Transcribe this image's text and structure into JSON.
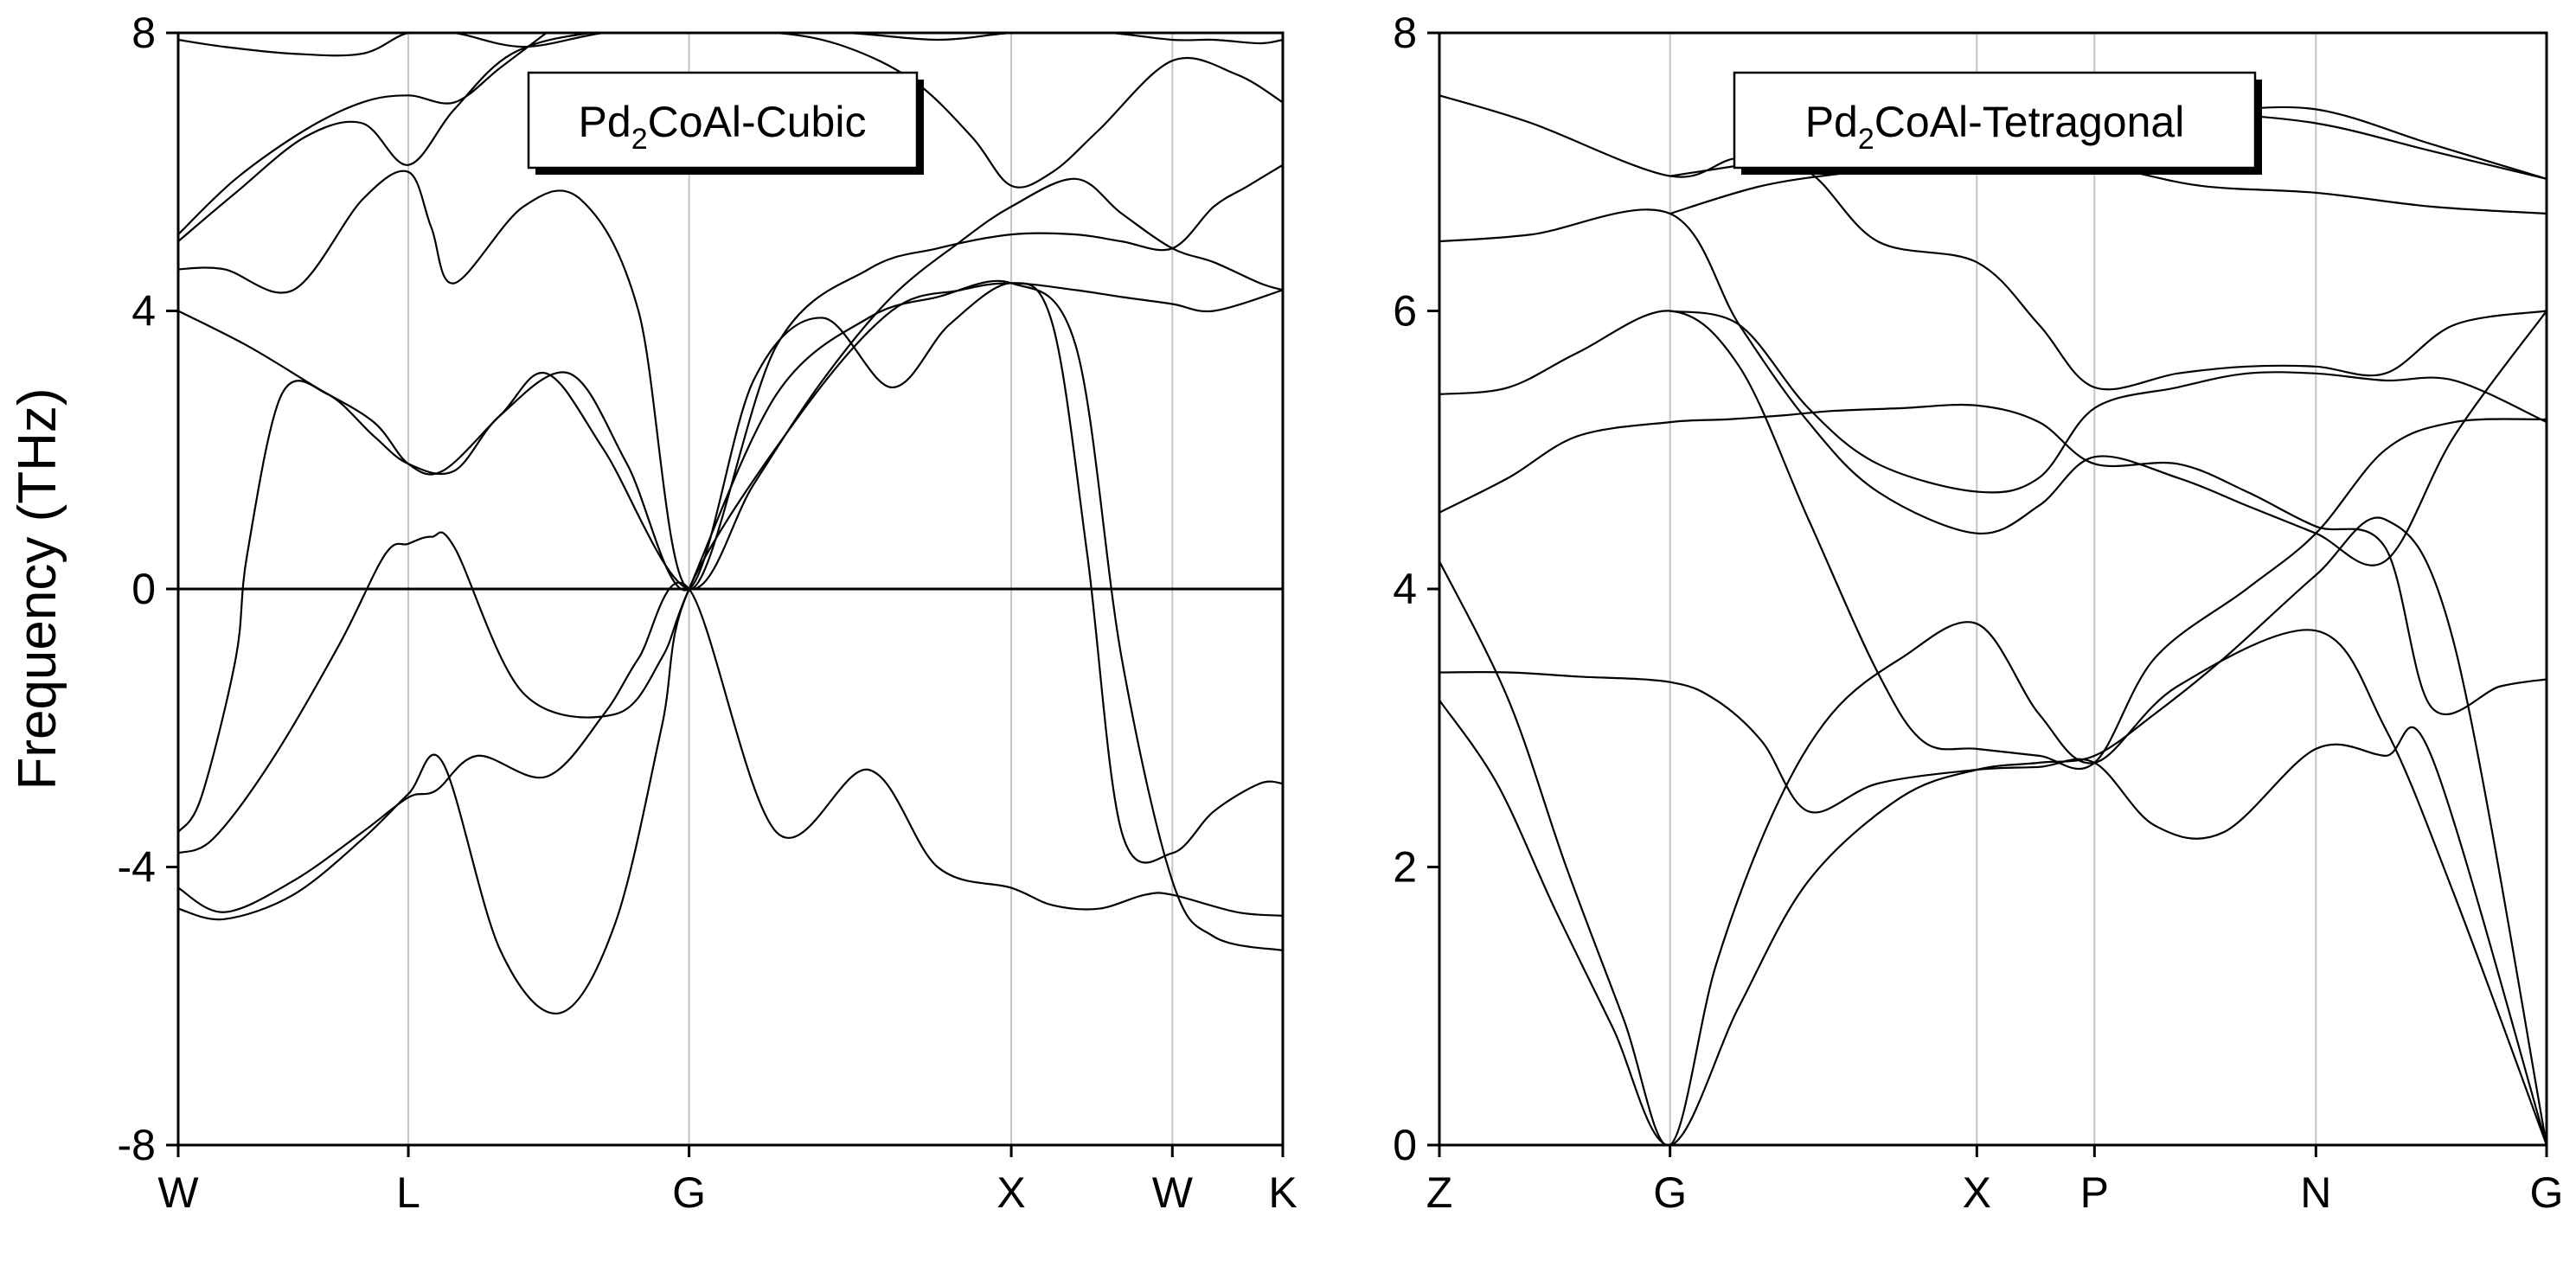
{
  "chart_data": [
    {
      "type": "line",
      "title": "Pd2CoAl-Cubic",
      "title_parts": {
        "base": "Pd",
        "sub": "2",
        "rest": "CoAl-Cubic"
      },
      "ylabel": "Frequency (THz)",
      "xlabel": "",
      "ylim": [
        -8,
        8
      ],
      "yticks": [
        -8,
        -4,
        0,
        4,
        8
      ],
      "ytick_labels": [
        "-8",
        "-4",
        "0",
        "4",
        "8"
      ],
      "xlim": [
        0,
        4.8
      ],
      "high_symmetry_points": [
        {
          "label": "W",
          "x": 0
        },
        {
          "label": "L",
          "x": 1.0
        },
        {
          "label": "G",
          "x": 2.22
        },
        {
          "label": "X",
          "x": 3.62
        },
        {
          "label": "W",
          "x": 4.32
        },
        {
          "label": "K",
          "x": 4.8
        }
      ],
      "zero_line": true,
      "series": [
        {
          "name": "b1",
          "x": [
            0,
            0.2,
            0.5,
            0.8,
            1.0,
            1.12,
            1.3,
            1.6,
            1.85,
            2.0,
            2.22,
            2.6,
            3.0,
            3.3,
            3.62,
            3.8,
            4.0,
            4.2,
            4.32,
            4.6,
            4.8
          ],
          "y": [
            -4.3,
            -4.65,
            -4.2,
            -3.5,
            -3.0,
            -2.9,
            -2.4,
            -2.7,
            -1.8,
            -1.0,
            0,
            -3.5,
            -2.6,
            -4.0,
            -4.3,
            -4.55,
            -4.6,
            -4.4,
            -4.4,
            -4.65,
            -4.7
          ]
        },
        {
          "name": "b2",
          "x": [
            0,
            0.2,
            0.5,
            0.8,
            1.0,
            1.15,
            1.4,
            1.66,
            1.9,
            2.1,
            2.22,
            2.7,
            3.1,
            3.4,
            3.62,
            3.9,
            4.1,
            4.32,
            4.5,
            4.8
          ],
          "y": [
            -4.6,
            -4.75,
            -4.4,
            -3.6,
            -2.95,
            -2.5,
            -5.2,
            -6.1,
            -4.8,
            -2.0,
            0,
            2.5,
            4.0,
            4.3,
            4.4,
            4.3,
            4.2,
            4.1,
            4.0,
            4.3
          ]
        },
        {
          "name": "b3",
          "x": [
            0,
            0.15,
            0.4,
            0.7,
            0.9,
            1.0,
            1.1,
            1.2,
            1.5,
            1.9,
            2.1,
            2.22,
            2.6,
            3.0,
            3.3,
            3.62,
            3.9,
            4.1,
            4.32,
            4.5,
            4.8
          ],
          "y": [
            -3.8,
            -3.6,
            -2.5,
            -0.8,
            0.5,
            0.65,
            0.75,
            0.6,
            -1.5,
            -1.8,
            -1.0,
            0,
            2.8,
            3.9,
            4.2,
            4.4,
            3.5,
            -1.0,
            -4.2,
            -5.0,
            -5.2
          ]
        },
        {
          "name": "b4",
          "x": [
            0,
            0.1,
            0.25,
            0.3,
            0.45,
            0.65,
            0.85,
            1.0,
            1.2,
            1.4,
            1.7,
            1.95,
            2.22,
            2.5,
            2.8,
            3.1,
            3.35,
            3.62,
            3.8,
            3.95,
            4.1,
            4.32,
            4.5,
            4.7,
            4.8
          ],
          "y": [
            -3.5,
            -3.0,
            -1.0,
            0.5,
            2.8,
            2.8,
            2.2,
            1.8,
            1.7,
            2.5,
            3.1,
            1.8,
            0,
            3.0,
            3.9,
            2.9,
            3.8,
            4.4,
            3.8,
            0.5,
            -3.5,
            -3.8,
            -3.2,
            -2.8,
            -2.8
          ]
        },
        {
          "name": "b5",
          "x": [
            0,
            0.3,
            0.6,
            0.85,
            1.0,
            1.15,
            1.4,
            1.6,
            1.85,
            2.22,
            2.5,
            2.8,
            3.1,
            3.4,
            3.62,
            3.9,
            4.1,
            4.32,
            4.5,
            4.7,
            4.8
          ],
          "y": [
            4.0,
            3.5,
            2.9,
            2.4,
            1.8,
            1.7,
            2.5,
            3.1,
            2.0,
            0,
            1.5,
            3.0,
            4.2,
            5.0,
            5.5,
            5.9,
            5.4,
            4.9,
            4.7,
            4.4,
            4.3
          ]
        },
        {
          "name": "b6",
          "x": [
            0,
            0.2,
            0.5,
            0.8,
            1.0,
            1.1,
            1.2,
            1.5,
            1.75,
            2.0,
            2.22,
            2.6,
            3.0,
            3.3,
            3.62,
            3.9,
            4.1,
            4.32,
            4.5,
            4.65,
            4.8
          ],
          "y": [
            4.6,
            4.6,
            4.3,
            5.6,
            6.0,
            5.2,
            4.4,
            5.5,
            5.6,
            4.0,
            0,
            3.5,
            4.6,
            4.9,
            5.1,
            5.1,
            5.0,
            4.9,
            5.5,
            5.8,
            6.1
          ]
        },
        {
          "name": "b7",
          "x": [
            0,
            0.25,
            0.55,
            0.8,
            1.0,
            1.2,
            1.45,
            1.8,
            2.2,
            2.6,
            2.9,
            3.2,
            3.45,
            3.62,
            3.8,
            4.0,
            4.32,
            4.6,
            4.8
          ],
          "y": [
            5.0,
            5.7,
            6.5,
            6.7,
            6.1,
            6.9,
            7.7,
            8.0,
            8.0,
            8.0,
            7.8,
            7.3,
            6.5,
            5.8,
            6.0,
            6.6,
            7.6,
            7.4,
            7.0
          ]
        },
        {
          "name": "b8",
          "x": [
            0,
            0.2,
            0.5,
            0.8,
            1.0,
            1.2,
            1.5,
            1.85,
            2.1,
            2.5,
            2.9,
            3.3,
            3.62,
            3.85,
            4.05,
            4.32,
            4.5,
            4.7,
            4.8
          ],
          "y": [
            7.9,
            7.8,
            7.7,
            7.7,
            8.0,
            8.0,
            7.8,
            8.0,
            8.0,
            8.0,
            8.0,
            7.9,
            8.0,
            8.0,
            8.0,
            7.9,
            7.9,
            7.85,
            7.9
          ]
        },
        {
          "name": "b9",
          "x": [
            0,
            0.25,
            0.55,
            0.8,
            1.0,
            1.2,
            1.4,
            1.6
          ],
          "y": [
            5.1,
            5.9,
            6.6,
            7.0,
            7.1,
            7.0,
            7.5,
            8.0
          ]
        }
      ]
    },
    {
      "type": "line",
      "title": "Pd2CoAl-Tetragonal",
      "title_parts": {
        "base": "Pd",
        "sub": "2",
        "rest": "CoAl-Tetragonal"
      },
      "ylabel": "",
      "xlabel": "",
      "ylim": [
        0,
        8
      ],
      "yticks": [
        0,
        2,
        4,
        6,
        8
      ],
      "ytick_labels": [
        "0",
        "2",
        "4",
        "6",
        "8"
      ],
      "xlim": [
        0,
        4.8
      ],
      "high_symmetry_points": [
        {
          "label": "Z",
          "x": 0
        },
        {
          "label": "G",
          "x": 1.0
        },
        {
          "label": "X",
          "x": 2.33
        },
        {
          "label": "P",
          "x": 2.84
        },
        {
          "label": "N",
          "x": 3.8
        },
        {
          "label": "G",
          "x": 4.8
        }
      ],
      "zero_line": false,
      "series": [
        {
          "name": "a1",
          "x": [
            0,
            0.25,
            0.5,
            0.75,
            1.0,
            1.3,
            1.6,
            2.0,
            2.33,
            2.6,
            2.84,
            3.1,
            3.4,
            3.8,
            4.1,
            4.4,
            4.8
          ],
          "y": [
            3.2,
            2.6,
            1.7,
            0.85,
            0,
            1.0,
            1.9,
            2.5,
            2.7,
            2.75,
            2.8,
            3.1,
            3.5,
            4.1,
            4.5,
            3.6,
            0
          ]
        },
        {
          "name": "a2",
          "x": [
            0,
            0.3,
            0.55,
            0.8,
            1.0,
            1.2,
            1.45,
            1.7,
            2.0,
            2.33,
            2.6,
            2.84,
            3.2,
            3.8,
            4.1,
            4.4,
            4.8
          ],
          "y": [
            4.2,
            3.2,
            2.0,
            0.9,
            0,
            1.3,
            2.4,
            3.1,
            3.5,
            3.75,
            3.1,
            2.75,
            3.3,
            3.7,
            3.0,
            1.8,
            0
          ]
        },
        {
          "name": "a3",
          "x": [
            0,
            0.3,
            0.6,
            1.0,
            1.2,
            1.4,
            1.6,
            1.9,
            2.33,
            2.6,
            2.84,
            3.1,
            3.4,
            3.8,
            4.1,
            4.3,
            4.8
          ],
          "y": [
            3.4,
            3.4,
            3.37,
            3.33,
            3.2,
            2.9,
            2.4,
            2.6,
            2.7,
            2.72,
            2.75,
            2.3,
            2.25,
            2.85,
            2.8,
            2.8,
            0
          ]
        },
        {
          "name": "a4",
          "x": [
            0,
            0.3,
            0.6,
            1.0,
            1.25,
            1.5,
            1.7,
            2.0,
            2.33,
            2.6,
            2.84,
            3.2,
            3.5,
            3.8,
            4.1,
            4.3,
            4.6,
            4.8
          ],
          "y": [
            4.55,
            4.8,
            5.1,
            5.2,
            5.22,
            5.25,
            5.28,
            5.3,
            5.32,
            5.2,
            4.9,
            4.9,
            4.7,
            4.45,
            4.3,
            3.15,
            3.3,
            3.35
          ]
        },
        {
          "name": "a5",
          "x": [
            0,
            0.3,
            0.6,
            1.0,
            1.3,
            1.6,
            1.9,
            2.1,
            2.33,
            2.6,
            2.84,
            3.1,
            3.5,
            3.8,
            4.1,
            4.4,
            4.8
          ],
          "y": [
            5.4,
            5.45,
            5.7,
            6.0,
            5.6,
            4.5,
            3.4,
            2.9,
            2.85,
            2.8,
            2.75,
            3.5,
            4.0,
            4.4,
            5.0,
            5.2,
            5.22
          ]
        },
        {
          "name": "a6",
          "x": [
            0,
            0.4,
            1.0,
            1.3,
            1.6,
            1.9,
            2.33,
            2.6,
            2.84,
            3.2,
            3.5,
            3.8,
            4.1,
            4.4,
            4.8
          ],
          "y": [
            6.5,
            6.55,
            6.7,
            5.9,
            5.2,
            4.7,
            4.4,
            4.6,
            4.95,
            4.8,
            4.6,
            4.4,
            4.2,
            5.1,
            6.0
          ]
        },
        {
          "name": "a7",
          "x": [
            0,
            0.4,
            1.0,
            1.3,
            1.6,
            1.9,
            2.33,
            2.6,
            2.84,
            3.2,
            3.5,
            3.8,
            4.1,
            4.4,
            4.8
          ],
          "y": [
            7.55,
            7.35,
            6.97,
            7.1,
            7.0,
            6.5,
            6.35,
            5.9,
            5.45,
            5.55,
            5.6,
            5.6,
            5.55,
            5.9,
            6.0
          ]
        },
        {
          "name": "a8",
          "x": [
            1.0,
            1.3,
            1.6,
            1.9,
            2.33,
            2.6,
            2.84,
            3.2,
            3.5,
            3.8,
            4.1,
            4.4,
            4.8
          ],
          "y": [
            6.0,
            5.9,
            5.3,
            4.9,
            4.7,
            4.8,
            5.3,
            5.45,
            5.55,
            5.55,
            5.5,
            5.5,
            5.2
          ]
        },
        {
          "name": "a9",
          "x": [
            1.0,
            1.4,
            1.8,
            2.33,
            2.84,
            3.3,
            3.8,
            4.3,
            4.8
          ],
          "y": [
            6.7,
            6.9,
            7.0,
            7.1,
            7.05,
            6.9,
            6.85,
            6.75,
            6.7
          ]
        },
        {
          "name": "a10",
          "x": [
            1.0,
            1.5,
            2.0,
            2.33,
            2.84,
            3.3,
            3.8,
            4.3,
            4.8
          ],
          "y": [
            6.97,
            7.1,
            7.25,
            7.35,
            7.4,
            7.42,
            7.35,
            7.15,
            6.95
          ]
        },
        {
          "name": "a11",
          "x": [
            2.33,
            2.84,
            3.3,
            3.8,
            4.3,
            4.8
          ],
          "y": [
            7.6,
            7.55,
            7.45,
            7.45,
            7.2,
            6.95
          ]
        }
      ]
    }
  ]
}
